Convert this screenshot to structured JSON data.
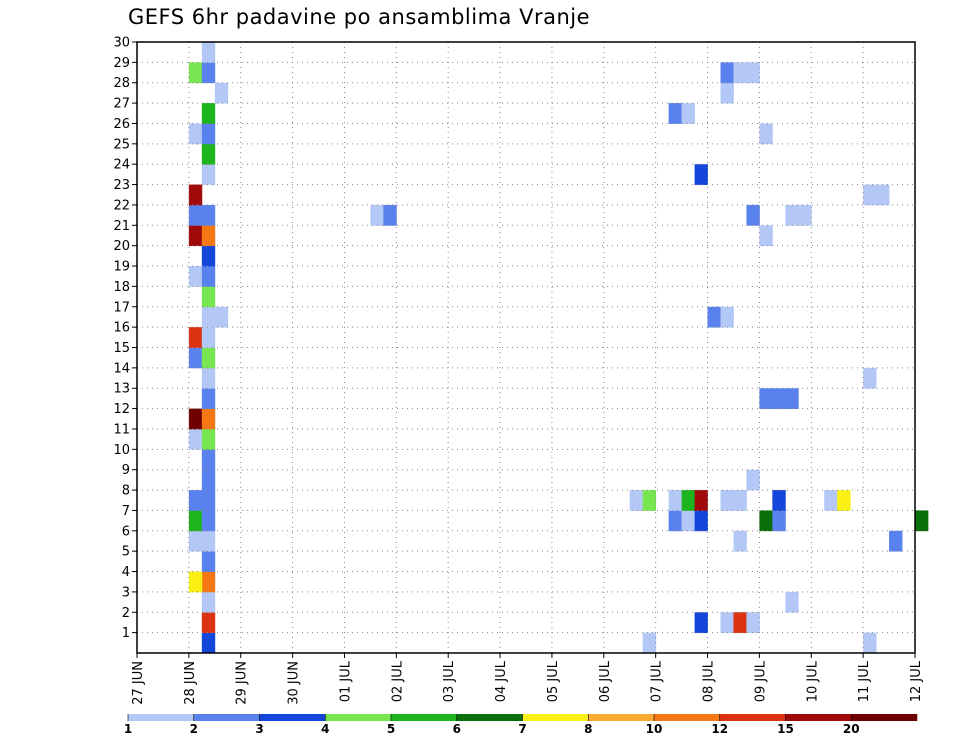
{
  "title": "GEFS 6hr padavine po ansamblima Vranje",
  "chart_data": {
    "type": "heatmap",
    "title": "GEFS 6hr padavine po ansamblima Vranje",
    "xlabel": "",
    "ylabel": "",
    "x_tick_labels": [
      "27 JUN",
      "28 JUN",
      "29 JUN",
      "30 JUN",
      "01 JUL",
      "02 JUL",
      "03 JUL",
      "04 JUL",
      "05 JUL",
      "06 JUL",
      "07 JUL",
      "08 JUL",
      "09 JUL",
      "10 JUL",
      "11 JUL",
      "12 JUL"
    ],
    "x_step_hours": 6,
    "y_tick_labels": [
      "1",
      "2",
      "3",
      "4",
      "5",
      "6",
      "7",
      "8",
      "9",
      "10",
      "11",
      "12",
      "13",
      "14",
      "15",
      "16",
      "17",
      "18",
      "19",
      "20",
      "21",
      "22",
      "23",
      "24",
      "25",
      "26",
      "27",
      "28",
      "29",
      "30"
    ],
    "ylim": [
      0,
      30
    ],
    "grid": true,
    "colorbar": {
      "position": "bottom",
      "labels": [
        "1",
        "2",
        "3",
        "4",
        "5",
        "6",
        "7",
        "8",
        "10",
        "12",
        "15",
        "20"
      ],
      "colors": [
        "#b4c8f8",
        "#5a82ee",
        "#1446dc",
        "#78e650",
        "#1eb41e",
        "#0a6e0a",
        "#faf014",
        "#faaa32",
        "#f57814",
        "#dc3214",
        "#a00a0a",
        "#6e0000"
      ]
    },
    "cells_note": "each cell: [x in 6-hour steps from 27 JUN 00Z, ensemble member, colour class index into colorbar.colors]",
    "cells": [
      [
        5,
        0,
        2
      ],
      [
        5,
        1,
        9
      ],
      [
        5,
        2,
        0
      ],
      [
        5,
        3,
        8
      ],
      [
        4,
        3,
        6
      ],
      [
        5,
        4,
        1
      ],
      [
        5,
        5,
        0
      ],
      [
        4,
        5,
        0
      ],
      [
        4,
        6,
        4
      ],
      [
        5,
        6,
        1
      ],
      [
        4,
        7,
        1
      ],
      [
        5,
        7,
        1
      ],
      [
        5,
        8,
        1
      ],
      [
        5,
        9,
        1
      ],
      [
        4,
        10,
        0
      ],
      [
        5,
        10,
        3
      ],
      [
        4,
        11,
        11
      ],
      [
        5,
        11,
        8
      ],
      [
        5,
        12,
        1
      ],
      [
        5,
        13,
        0
      ],
      [
        4,
        14,
        1
      ],
      [
        5,
        14,
        3
      ],
      [
        4,
        15,
        9
      ],
      [
        5,
        15,
        0
      ],
      [
        5,
        16,
        0
      ],
      [
        6,
        16,
        0
      ],
      [
        5,
        17,
        3
      ],
      [
        4,
        18,
        0
      ],
      [
        5,
        18,
        1
      ],
      [
        5,
        19,
        2
      ],
      [
        4,
        20,
        10
      ],
      [
        5,
        20,
        8
      ],
      [
        4,
        21,
        1
      ],
      [
        5,
        21,
        1
      ],
      [
        4,
        22,
        10
      ],
      [
        5,
        23,
        0
      ],
      [
        5,
        24,
        4
      ],
      [
        4,
        25,
        0
      ],
      [
        5,
        25,
        1
      ],
      [
        5,
        26,
        4
      ],
      [
        6,
        27,
        0
      ],
      [
        4,
        28,
        3
      ],
      [
        5,
        28,
        1
      ],
      [
        5,
        29,
        0
      ],
      [
        18,
        21,
        0
      ],
      [
        19,
        21,
        1
      ],
      [
        39,
        0,
        0
      ],
      [
        43,
        1,
        2
      ],
      [
        45,
        1,
        0
      ],
      [
        46,
        1,
        9
      ],
      [
        47,
        1,
        0
      ],
      [
        50,
        2,
        0
      ],
      [
        58,
        5,
        1
      ],
      [
        46,
        5,
        0
      ],
      [
        41,
        6,
        1
      ],
      [
        42,
        6,
        0
      ],
      [
        43,
        6,
        2
      ],
      [
        48,
        6,
        5
      ],
      [
        49,
        6,
        1
      ],
      [
        60,
        6,
        5
      ],
      [
        38,
        7,
        0
      ],
      [
        39,
        7,
        3
      ],
      [
        41,
        7,
        0
      ],
      [
        42,
        7,
        4
      ],
      [
        43,
        7,
        10
      ],
      [
        45,
        7,
        0
      ],
      [
        46,
        7,
        0
      ],
      [
        49,
        7,
        2
      ],
      [
        53,
        7,
        0
      ],
      [
        54,
        7,
        6
      ],
      [
        47,
        8,
        0
      ],
      [
        48,
        12,
        1
      ],
      [
        49,
        12,
        1
      ],
      [
        50,
        12,
        1
      ],
      [
        56,
        13,
        0
      ],
      [
        44,
        16,
        1
      ],
      [
        45,
        16,
        0
      ],
      [
        48,
        20,
        0
      ],
      [
        47,
        21,
        1
      ],
      [
        50,
        21,
        0
      ],
      [
        51,
        21,
        0
      ],
      [
        56,
        22,
        0
      ],
      [
        57,
        22,
        0
      ],
      [
        43,
        23,
        2
      ],
      [
        48,
        25,
        0
      ],
      [
        41,
        26,
        1
      ],
      [
        42,
        26,
        0
      ],
      [
        45,
        27,
        0
      ],
      [
        45,
        28,
        1
      ],
      [
        46,
        28,
        0
      ],
      [
        47,
        28,
        0
      ],
      [
        56,
        0,
        0
      ]
    ]
  }
}
